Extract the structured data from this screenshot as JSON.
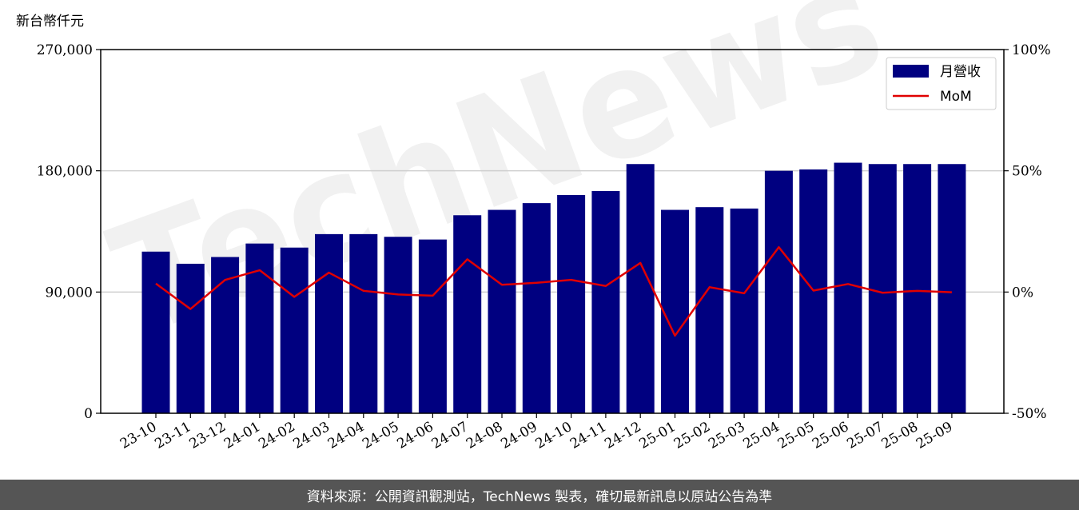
{
  "chart_data": {
    "type": "bar",
    "y_unit_label": "新台幣仟元",
    "categories": [
      "23-10",
      "23-11",
      "23-12",
      "24-01",
      "24-02",
      "24-03",
      "24-04",
      "24-05",
      "24-06",
      "24-07",
      "24-08",
      "24-09",
      "24-10",
      "24-11",
      "24-12",
      "25-01",
      "25-02",
      "25-03",
      "25-04",
      "25-05",
      "25-06",
      "25-07",
      "25-08",
      "25-09"
    ],
    "series": [
      {
        "name": "月營收",
        "type": "bar",
        "axis": "left",
        "color": "#000080",
        "values": [
          120000,
          111000,
          116000,
          126000,
          123000,
          133000,
          133000,
          131000,
          129000,
          147000,
          151000,
          156000,
          162000,
          165000,
          185000,
          151000,
          153000,
          152000,
          180000,
          181000,
          186000,
          185000,
          185000,
          185000
        ]
      },
      {
        "name": "MoM",
        "type": "line",
        "axis": "right",
        "color": "#e00000",
        "values": [
          3.5,
          -7.0,
          5.0,
          9.0,
          -2.0,
          8.0,
          0.5,
          -1.0,
          -1.5,
          13.5,
          3.0,
          3.8,
          5.0,
          2.5,
          12.0,
          -18.0,
          2.0,
          -0.5,
          18.5,
          0.6,
          3.3,
          -0.3,
          0.5,
          -0.1
        ]
      }
    ],
    "y_left": {
      "min": 0,
      "max": 270000,
      "ticks": [
        "0",
        "90,000",
        "180,000",
        "270,000"
      ],
      "tick_values": [
        0,
        90000,
        180000,
        270000
      ]
    },
    "y_right": {
      "min": -50,
      "max": 100,
      "ticks": [
        "-50%",
        "0%",
        "50%",
        "100%"
      ],
      "tick_values": [
        -50,
        0,
        50,
        100
      ]
    },
    "grid": "horizontal",
    "legend_position": "top-right"
  },
  "watermark": {
    "text": "TechNews"
  },
  "footer": {
    "text": "資料來源：公開資訊觀測站，TechNews 製表，確切最新訊息以原站公告為準"
  }
}
